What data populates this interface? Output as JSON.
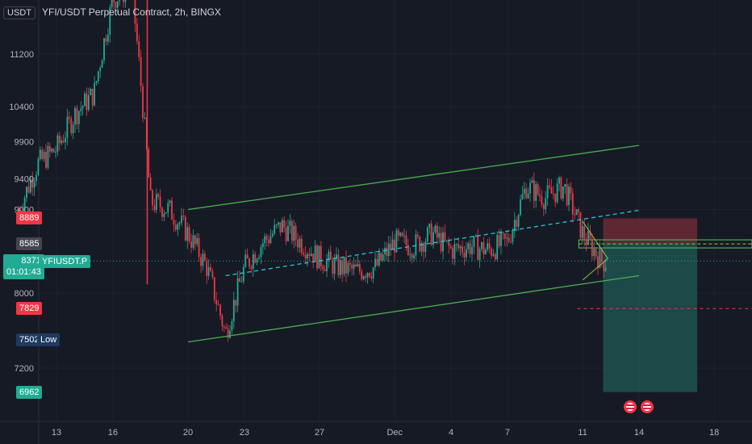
{
  "header": {
    "currency": "USDT",
    "title": "YFI/USDT Perpetual Contract, 2h, BINGX"
  },
  "colors": {
    "background": "#161a25",
    "up": "#22ab94",
    "down": "#f23645",
    "channel": "#4caf50",
    "midline": "#26c6da",
    "target_zone": "#1f5f58",
    "stop_zone": "#6b2a34",
    "entry_band": "#2e7d32"
  },
  "price_tags": {
    "stop": "8889",
    "entry": "8585",
    "current": "8371",
    "countdown": "01:01:43",
    "symbol": "YFIUSDT.P",
    "level": "7829",
    "low_value": "7502",
    "low_label": "Low",
    "target": "6962"
  },
  "chart_data": {
    "type": "candlestick",
    "y_scale": "log",
    "ylim": [
      6700,
      12200
    ],
    "y_ticks": [
      7200,
      8000,
      9000,
      9400,
      9900,
      10400,
      11200
    ],
    "y_tick_labels": [
      "7200",
      "8000",
      "9000",
      "9400",
      "9900",
      "10400",
      "11200"
    ],
    "x_ticks": [
      "13",
      "16",
      "20",
      "23",
      "27",
      "Dec",
      "4",
      "7",
      "11",
      "14",
      "18"
    ],
    "channel_upper": [
      {
        "date": "Nov 20",
        "price": 9000
      },
      {
        "date": "Dec 14",
        "price": 9850
      }
    ],
    "channel_lower": [
      {
        "date": "Nov 20",
        "price": 7470
      },
      {
        "date": "Dec 14",
        "price": 8200
      }
    ],
    "channel_mid": [
      {
        "date": "Nov 22",
        "price": 8200
      },
      {
        "date": "Dec 14",
        "price": 8990
      }
    ],
    "position": {
      "entry": 8585,
      "stop": 8889,
      "target": 6962,
      "dashed_level": 7829
    },
    "price_path": [
      {
        "date": "Nov 11",
        "price": 8990
      },
      {
        "date": "Nov 12",
        "price": 9600
      },
      {
        "date": "Nov 13",
        "price": 9800
      },
      {
        "date": "Nov 14",
        "price": 10300
      },
      {
        "date": "Nov 15",
        "price": 10600
      },
      {
        "date": "Nov 16",
        "price": 12100
      },
      {
        "date": "Nov 17",
        "price": 12300
      },
      {
        "date": "Nov 18",
        "price": 9100
      },
      {
        "date": "Nov 19",
        "price": 9000
      },
      {
        "date": "Nov 20",
        "price": 8700
      },
      {
        "date": "Nov 21",
        "price": 8300
      },
      {
        "date": "Nov 22",
        "price": 7550
      },
      {
        "date": "Nov 23",
        "price": 8300
      },
      {
        "date": "Nov 24",
        "price": 8600
      },
      {
        "date": "Nov 25",
        "price": 8800
      },
      {
        "date": "Nov 26",
        "price": 8600
      },
      {
        "date": "Nov 27",
        "price": 8400
      },
      {
        "date": "Nov 28",
        "price": 8300
      },
      {
        "date": "Nov 29",
        "price": 8250
      },
      {
        "date": "Nov 30",
        "price": 8300
      },
      {
        "date": "Dec 1",
        "price": 8600
      },
      {
        "date": "Dec 2",
        "price": 8550
      },
      {
        "date": "Dec 3",
        "price": 8700
      },
      {
        "date": "Dec 4",
        "price": 8500
      },
      {
        "date": "Dec 5",
        "price": 8550
      },
      {
        "date": "Dec 6",
        "price": 8500
      },
      {
        "date": "Dec 7",
        "price": 8600
      },
      {
        "date": "Dec 8",
        "price": 9300
      },
      {
        "date": "Dec 9",
        "price": 9150
      },
      {
        "date": "Dec 10",
        "price": 9300
      },
      {
        "date": "Dec 11",
        "price": 8700
      },
      {
        "date": "Dec 12",
        "price": 8371
      }
    ]
  }
}
